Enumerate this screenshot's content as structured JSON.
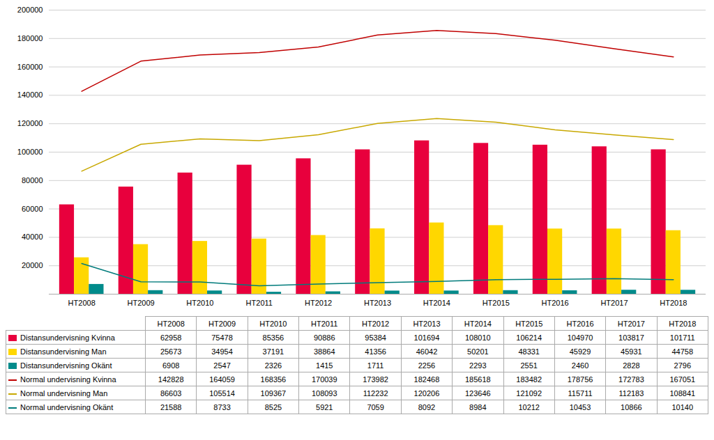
{
  "chart_data": {
    "type": "bar",
    "categories": [
      "HT2008",
      "HT2009",
      "HT2010",
      "HT2011",
      "HT2012",
      "HT2013",
      "HT2014",
      "HT2015",
      "HT2016",
      "HT2017",
      "HT2018"
    ],
    "series": [
      {
        "name": "Distansundervisning Kvinna",
        "type": "bar",
        "color": "#e8003d",
        "values": [
          62958,
          75478,
          85356,
          90886,
          95384,
          101694,
          108010,
          106214,
          104970,
          103817,
          101711
        ]
      },
      {
        "name": "Distansundervisning Man",
        "type": "bar",
        "color": "#ffd700",
        "values": [
          25673,
          34954,
          37191,
          38864,
          41356,
          46042,
          50201,
          48331,
          45929,
          45931,
          44758
        ]
      },
      {
        "name": "Distansundervisning Okänt",
        "type": "bar",
        "color": "#008b8b",
        "values": [
          6908,
          2547,
          2326,
          1415,
          1711,
          2256,
          2293,
          2551,
          2460,
          2828,
          2796
        ]
      },
      {
        "name": "Normal undervisning Kvinna",
        "type": "line",
        "color": "#c00000",
        "values": [
          142828,
          164059,
          168356,
          170039,
          173982,
          182468,
          185618,
          183482,
          178756,
          172783,
          167051
        ]
      },
      {
        "name": "Normal undervisning Man",
        "type": "line",
        "color": "#c8a800",
        "values": [
          86603,
          105514,
          109367,
          108093,
          112232,
          120206,
          123646,
          121092,
          115711,
          112183,
          108841
        ]
      },
      {
        "name": "Normal undervisning Okänt",
        "type": "line",
        "color": "#007b7b",
        "values": [
          21588,
          8733,
          8525,
          5921,
          7059,
          8092,
          8984,
          10212,
          10453,
          10866,
          10140
        ]
      }
    ],
    "ylim": [
      0,
      200000
    ],
    "yticks": [
      {
        "value": 0,
        "label": null
      },
      20000,
      40000,
      60000,
      80000,
      100000,
      120000,
      140000,
      160000,
      180000,
      200000
    ],
    "grid": true
  }
}
